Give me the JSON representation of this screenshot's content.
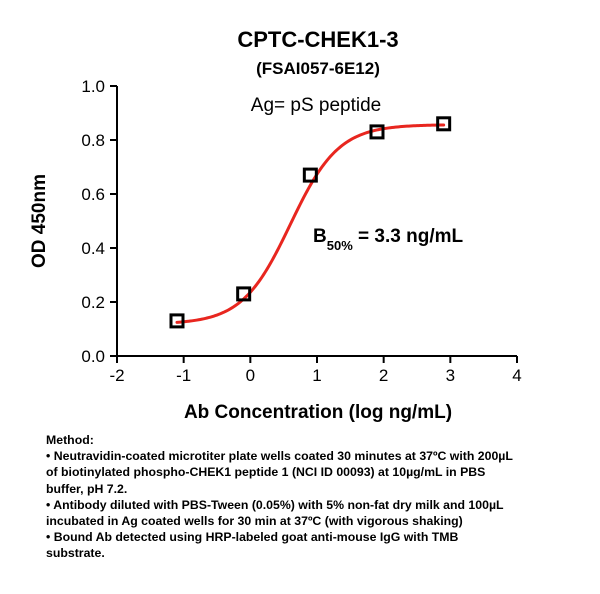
{
  "chart_data": {
    "type": "scatter",
    "title": "CPTC-CHEK1-3",
    "subtitle": "(FSAI057-6E12)",
    "xlabel": "Ab Concentration (log ng/mL)",
    "ylabel": "OD 450nm",
    "xlim": [
      -2,
      4
    ],
    "ylim": [
      0,
      1.0
    ],
    "x_ticks": [
      "-2",
      "-1",
      "0",
      "1",
      "2",
      "3",
      "4"
    ],
    "y_ticks": [
      "0.0",
      "0.2",
      "0.4",
      "0.6",
      "0.8",
      "1.0"
    ],
    "series": [
      {
        "marker": "open-square",
        "color": "#000000",
        "x": [
          -1.1,
          -0.1,
          0.9,
          1.9,
          2.9
        ],
        "y": [
          0.13,
          0.23,
          0.67,
          0.83,
          0.86
        ]
      }
    ],
    "fit": {
      "type": "sigmoid",
      "color": "#e8261f",
      "bottom": 0.118,
      "top": 0.857,
      "log_ec50": 0.6,
      "hill_slope": 1.2
    },
    "annotations": {
      "antigen": "Ag= pS peptide",
      "b50_main": "B",
      "b50_sub": "50%",
      "b50_value": " = 3.3 ng/mL"
    },
    "grid": false,
    "legend": "none"
  },
  "method": {
    "lines": [
      "Method:",
      "• Neutravidin-coated microtiter plate wells coated 30 minutes at 37ºC  with 200µL",
      "of biotinylated phospho-CHEK1 peptide 1 (NCI ID 00093) at 10µg/mL in PBS",
      "buffer, pH 7.2.",
      "• Antibody diluted with PBS-Tween (0.05%) with 5% non-fat dry milk and 100µL",
      "incubated in Ag coated wells for 30 min at 37ºC (with vigorous shaking)",
      "• Bound Ab detected using HRP-labeled goat anti-mouse IgG with TMB",
      "substrate."
    ]
  }
}
